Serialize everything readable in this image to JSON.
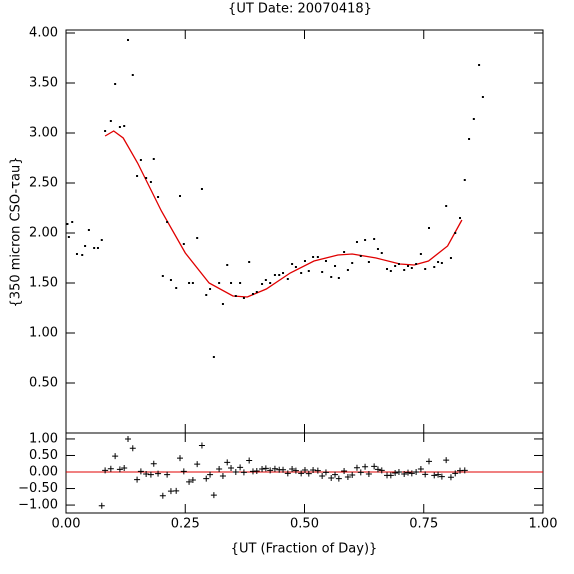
{
  "chart_data": [
    {
      "type": "scatter",
      "title": "{UT Date: 20070418}",
      "y_label": "{350 micron CSO-τau}",
      "xlim": [
        0,
        1
      ],
      "xticks": [
        0,
        0.25,
        0.5,
        0.75,
        1
      ],
      "ylim": [
        0,
        4.03
      ],
      "yticks": [
        {
          "value": 0.5,
          "label": "0.50"
        },
        {
          "value": 1,
          "label": "1.00"
        },
        {
          "value": 1.5,
          "label": "1.50"
        },
        {
          "value": 2,
          "label": "2.00"
        },
        {
          "value": 2.5,
          "label": "2.50"
        },
        {
          "value": 3,
          "label": "3.00"
        },
        {
          "value": 3.5,
          "label": "3.50"
        },
        {
          "value": 4,
          "label": "4.00"
        }
      ],
      "points": {
        "color": "#000000",
        "x": [
          0.003,
          0.006,
          0.013,
          0.023,
          0.034,
          0.04,
          0.048,
          0.059,
          0.067,
          0.075,
          0.082,
          0.094,
          0.103,
          0.113,
          0.122,
          0.13,
          0.14,
          0.149,
          0.157,
          0.168,
          0.178,
          0.184,
          0.193,
          0.203,
          0.212,
          0.22,
          0.231,
          0.239,
          0.247,
          0.258,
          0.266,
          0.275,
          0.285,
          0.294,
          0.302,
          0.31,
          0.321,
          0.329,
          0.338,
          0.346,
          0.356,
          0.365,
          0.373,
          0.384,
          0.392,
          0.4,
          0.411,
          0.419,
          0.428,
          0.438,
          0.447,
          0.455,
          0.465,
          0.474,
          0.482,
          0.493,
          0.501,
          0.509,
          0.518,
          0.528,
          0.537,
          0.545,
          0.556,
          0.564,
          0.572,
          0.583,
          0.591,
          0.6,
          0.61,
          0.618,
          0.627,
          0.635,
          0.646,
          0.654,
          0.662,
          0.673,
          0.681,
          0.69,
          0.698,
          0.709,
          0.717,
          0.725,
          0.734,
          0.744,
          0.753,
          0.761,
          0.772,
          0.78,
          0.788,
          0.797,
          0.807,
          0.816,
          0.826,
          0.836,
          0.845,
          0.855,
          0.866,
          0.874
        ],
        "values": [
          2.09,
          1.96,
          2.11,
          1.79,
          1.78,
          1.87,
          2.03,
          1.85,
          1.85,
          1.93,
          3.02,
          3.12,
          3.49,
          3.06,
          3.07,
          3.93,
          3.58,
          2.57,
          2.73,
          2.55,
          2.51,
          2.74,
          2.36,
          1.57,
          2.11,
          1.53,
          1.45,
          2.37,
          1.89,
          1.5,
          1.5,
          1.95,
          2.44,
          1.38,
          1.44,
          0.76,
          1.5,
          1.29,
          1.68,
          1.5,
          1.37,
          1.5,
          1.35,
          1.71,
          1.39,
          1.41,
          1.49,
          1.53,
          1.5,
          1.58,
          1.58,
          1.6,
          1.54,
          1.69,
          1.66,
          1.6,
          1.72,
          1.62,
          1.76,
          1.76,
          1.61,
          1.72,
          1.56,
          1.67,
          1.55,
          1.81,
          1.63,
          1.7,
          1.91,
          1.77,
          1.93,
          1.71,
          1.94,
          1.84,
          1.8,
          1.64,
          1.62,
          1.67,
          1.69,
          1.63,
          1.67,
          1.65,
          1.69,
          1.79,
          1.64,
          2.05,
          1.66,
          1.71,
          1.7,
          2.27,
          1.75,
          2.0,
          2.15,
          2.53,
          2.94,
          3.14,
          3.68,
          3.36
        ]
      },
      "fit": {
        "color": "#e00000",
        "x": [
          0.082,
          0.1,
          0.12,
          0.15,
          0.2,
          0.25,
          0.3,
          0.35,
          0.38,
          0.42,
          0.47,
          0.52,
          0.57,
          0.6,
          0.65,
          0.7,
          0.73,
          0.76,
          0.8,
          0.83
        ],
        "values": [
          2.97,
          3.02,
          2.95,
          2.7,
          2.22,
          1.8,
          1.5,
          1.37,
          1.36,
          1.44,
          1.6,
          1.72,
          1.78,
          1.79,
          1.75,
          1.69,
          1.68,
          1.72,
          1.87,
          2.13
        ]
      }
    },
    {
      "type": "residuals",
      "x_label": "{UT (Fraction of Day)}",
      "xlim": [
        0,
        1
      ],
      "xticks": [
        {
          "value": 0,
          "label": "0.00"
        },
        {
          "value": 0.25,
          "label": "0.25"
        },
        {
          "value": 0.5,
          "label": "0.50"
        },
        {
          "value": 0.75,
          "label": "0.75"
        },
        {
          "value": 1,
          "label": "1.00"
        }
      ],
      "ylim": [
        -1.24,
        1.18
      ],
      "yticks": [
        {
          "value": -1,
          "label": "−1.00"
        },
        {
          "value": -0.5,
          "label": "−0.50"
        },
        {
          "value": 0,
          "label": "0.00"
        },
        {
          "value": 0.5,
          "label": "0.50"
        },
        {
          "value": 1,
          "label": "1.00"
        }
      ],
      "zero_line": {
        "value": 0,
        "color": "#e00000"
      },
      "points": {
        "color": "#000000",
        "x": [
          0.075,
          0.082,
          0.094,
          0.103,
          0.113,
          0.122,
          0.13,
          0.14,
          0.149,
          0.157,
          0.168,
          0.178,
          0.184,
          0.193,
          0.203,
          0.212,
          0.22,
          0.231,
          0.239,
          0.247,
          0.258,
          0.266,
          0.275,
          0.285,
          0.294,
          0.302,
          0.31,
          0.321,
          0.329,
          0.338,
          0.346,
          0.356,
          0.365,
          0.373,
          0.384,
          0.392,
          0.4,
          0.411,
          0.419,
          0.428,
          0.438,
          0.447,
          0.455,
          0.465,
          0.474,
          0.482,
          0.493,
          0.501,
          0.509,
          0.518,
          0.528,
          0.537,
          0.545,
          0.556,
          0.564,
          0.572,
          0.583,
          0.591,
          0.6,
          0.61,
          0.618,
          0.627,
          0.635,
          0.646,
          0.654,
          0.662,
          0.673,
          0.681,
          0.69,
          0.698,
          0.709,
          0.717,
          0.725,
          0.734,
          0.744,
          0.753,
          0.761,
          0.772,
          0.78,
          0.788,
          0.797,
          0.807,
          0.816,
          0.826,
          0.836
        ],
        "values": [
          -1.02,
          0.05,
          0.1,
          0.48,
          0.08,
          0.12,
          1.0,
          0.72,
          -0.23,
          0.02,
          -0.06,
          -0.08,
          0.25,
          -0.05,
          -0.72,
          -0.08,
          -0.58,
          -0.57,
          0.42,
          0.02,
          -0.3,
          -0.24,
          0.24,
          0.8,
          -0.2,
          -0.08,
          -0.7,
          0.09,
          -0.12,
          0.29,
          0.12,
          0.0,
          0.14,
          -0.01,
          0.35,
          0.02,
          0.03,
          0.09,
          0.11,
          0.05,
          0.1,
          0.07,
          0.07,
          -0.04,
          0.09,
          0.04,
          -0.04,
          0.06,
          -0.05,
          0.06,
          0.04,
          -0.12,
          -0.01,
          -0.18,
          -0.08,
          -0.2,
          0.03,
          -0.15,
          -0.09,
          0.13,
          -0.01,
          0.16,
          -0.06,
          0.17,
          0.08,
          0.05,
          -0.1,
          -0.1,
          -0.03,
          0.0,
          -0.06,
          -0.02,
          -0.04,
          0.0,
          0.09,
          -0.07,
          0.32,
          -0.1,
          -0.08,
          -0.14,
          0.36,
          -0.16,
          -0.04,
          0.04,
          0.05
        ]
      }
    }
  ]
}
